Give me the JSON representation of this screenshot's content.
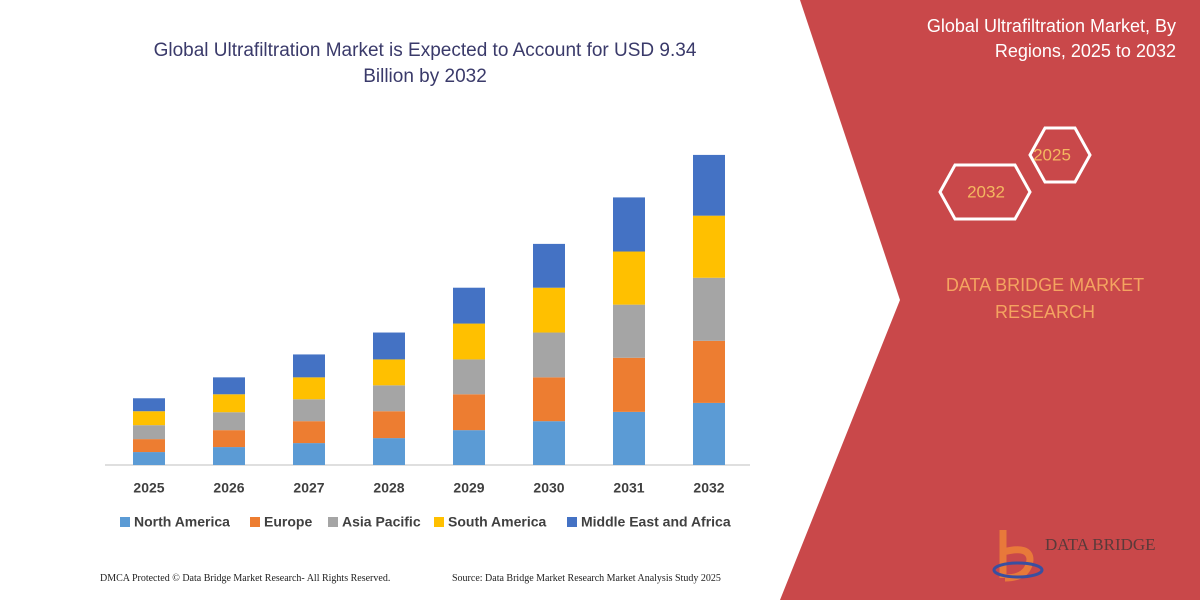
{
  "chart_data": {
    "type": "stacked-bar",
    "title": "Global Ultrafiltration Market is Expected to Account for USD 9.34 Billion by 2032",
    "categories": [
      "2025",
      "2026",
      "2027",
      "2028",
      "2029",
      "2030",
      "2031",
      "2032"
    ],
    "series": [
      {
        "name": "North America",
        "color": "#5b9bd5",
        "values": [
          0.39,
          0.54,
          0.66,
          0.81,
          1.05,
          1.32,
          1.6,
          1.87
        ]
      },
      {
        "name": "Europe",
        "color": "#ed7d31",
        "values": [
          0.39,
          0.51,
          0.66,
          0.81,
          1.08,
          1.32,
          1.63,
          1.87
        ]
      },
      {
        "name": "Asia Pacific",
        "color": "#a5a5a5",
        "values": [
          0.42,
          0.54,
          0.66,
          0.78,
          1.05,
          1.35,
          1.6,
          1.9
        ]
      },
      {
        "name": "South America",
        "color": "#ffc000",
        "values": [
          0.42,
          0.54,
          0.66,
          0.78,
          1.08,
          1.35,
          1.6,
          1.87
        ]
      },
      {
        "name": "Middle East and Africa",
        "color": "#4472c4",
        "values": [
          0.39,
          0.51,
          0.69,
          0.81,
          1.08,
          1.32,
          1.63,
          1.83
        ]
      }
    ],
    "ylim": [
      0,
      10
    ]
  },
  "panel": {
    "title": "Global Ultrafiltration Market, By Regions, 2025 to 2032",
    "hex_labels": [
      "2025",
      "2032"
    ],
    "brand": "DATA BRIDGE MARKET RESEARCH",
    "logo": "DATA BRIDGE"
  },
  "footer": {
    "left": "DMCA Protected © Data Bridge Market Research- All Rights Reserved.",
    "right": "Source: Data Bridge Market Research Market Analysis Study 2025"
  }
}
